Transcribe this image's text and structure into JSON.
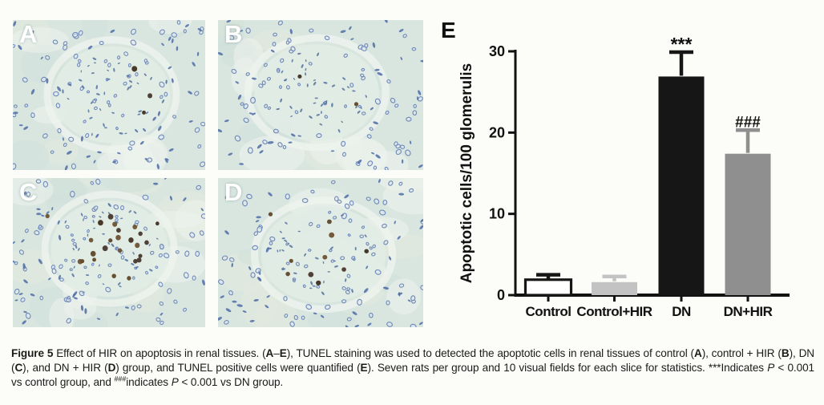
{
  "figure": {
    "panels": [
      {
        "label": "A",
        "group": "control",
        "tunel_positive_spots": 3
      },
      {
        "label": "B",
        "group": "control + HIR",
        "tunel_positive_spots": 2
      },
      {
        "label": "C",
        "group": "DN",
        "tunel_positive_spots": 25
      },
      {
        "label": "D",
        "group": "DN + HIR",
        "tunel_positive_spots": 10
      }
    ],
    "chart_panel_label": "E",
    "caption_segments": [
      {
        "text": "Figure 5",
        "bold": true
      },
      {
        "text": " Effect of HIR on apoptosis in renal tissues. ("
      },
      {
        "text": "A",
        "bold": true
      },
      {
        "text": "–"
      },
      {
        "text": "E",
        "bold": true
      },
      {
        "text": "), TUNEL staining was used to detected the apoptotic cells in renal tissues of control ("
      },
      {
        "text": "A",
        "bold": true
      },
      {
        "text": "), control + HIR ("
      },
      {
        "text": "B",
        "bold": true
      },
      {
        "text": "), DN ("
      },
      {
        "text": "C",
        "bold": true
      },
      {
        "text": "), and DN + HIR ("
      },
      {
        "text": "D",
        "bold": true
      },
      {
        "text": ") group, and TUNEL positive cells were quantified ("
      },
      {
        "text": "E",
        "bold": true
      },
      {
        "text": "). Seven rats per group and 10 visual fields for each slice for statistics. ***Indicates "
      },
      {
        "text": "P",
        "italic": true
      },
      {
        "text": " < 0.001 vs control group, and "
      },
      {
        "text": "###",
        "sup": true
      },
      {
        "text": "indicates "
      },
      {
        "text": "P",
        "italic": true
      },
      {
        "text": " < 0.001 vs DN group."
      }
    ]
  },
  "chart_data": {
    "type": "bar",
    "categories": [
      "Control",
      "Control+HIR",
      "DN",
      "DN+HIR"
    ],
    "values": [
      1.9,
      1.6,
      26.9,
      17.4
    ],
    "errors_upper": [
      0.6,
      0.7,
      3.0,
      2.9
    ],
    "annotations": [
      {
        "category": "DN",
        "text": "***"
      },
      {
        "category": "DN+HIR",
        "text": "###"
      }
    ],
    "xlabel": "",
    "ylabel": "Apoptotic cells/100 glomerulis",
    "yticks": [
      0,
      10,
      20,
      30
    ],
    "ylim": [
      0,
      30
    ],
    "grid": false,
    "legend": "none",
    "bar_colors": [
      "#ffffff",
      "#c3c3c3",
      "#161616",
      "#8f8f8f"
    ],
    "bar_edge_colors": [
      "#161616",
      "#c3c3c3",
      "#161616",
      "#8f8f8f"
    ],
    "error_colors": [
      "#161616",
      "#c3c3c3",
      "#161616",
      "#8f8f8f"
    ],
    "axis_color": "#111111"
  }
}
